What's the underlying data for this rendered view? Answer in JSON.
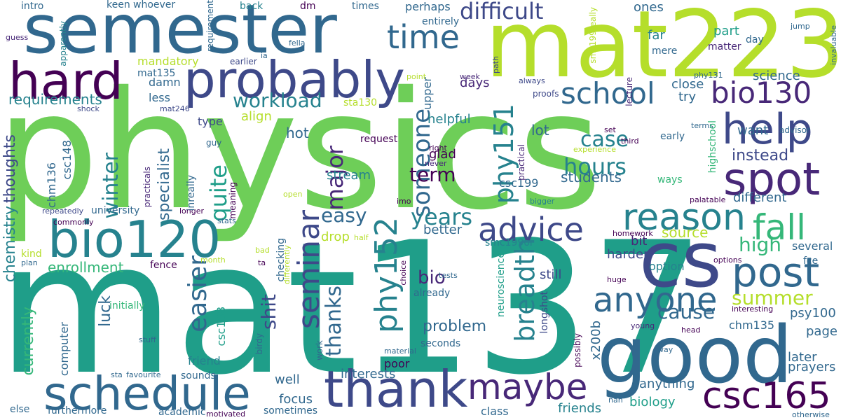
{
  "words": {
    "physics": "physics",
    "mat137": "mat137",
    "mat223": "mat223",
    "semester": "semester",
    "probably": "probably",
    "hard": "hard",
    "cs": "cs",
    "good": "good",
    "bio120": "bio120",
    "schedule": "schedule",
    "thank": "thank",
    "maybe": "maybe",
    "csc165": "csc165",
    "spot": "spot",
    "help": "help",
    "post": "post",
    "reason": "reason",
    "fall": "fall",
    "anyone": "anyone",
    "advice": "advice",
    "bio130": "bio130",
    "school": "school",
    "time": "time",
    "difficult": "difficult",
    "seminar": "seminar",
    "phy152": "phy152",
    "phy151": "phy151",
    "someone": "someone",
    "hours": "hours",
    "case": "case",
    "summer": "summer",
    "breadth": "breadth",
    "easier": "easier",
    "major": "major",
    "quite": "quite",
    "workload": "workload",
    "winter": "winter",
    "years": "years",
    "easy": "easy",
    "term": "term",
    "students": "students",
    "instead": "instead",
    "high": "high",
    "cause": "cause",
    "source": "source",
    "problem": "problem",
    "thanks": "thanks",
    "shit": "shit",
    "bio": "bio",
    "specialist": "specialist",
    "requirements": "requirements",
    "chemistry": "chemistry",
    "thoughts": "thoughts",
    "currently": "currently",
    "enrollment": "enrollment",
    "luck": "luck",
    "lot": "lot",
    "hot": "hot",
    "days": "days",
    "helpful": "helpful",
    "want": "want",
    "different": "different",
    "science": "science",
    "far": "far",
    "part": "part",
    "ones": "ones",
    "mere": "mere",
    "day": "day",
    "matter": "matter",
    "jump": "jump",
    "invaluable": "invaluable",
    "perhaps": "perhaps",
    "entirely": "entirely",
    "times": "times",
    "dm": "dm",
    "back": "back",
    "keen": "keen",
    "whoever": "whoever",
    "intro": "intro",
    "guess": "guess",
    "apparently": "apparently",
    "requirement": "requirement",
    "earlier": "earlier",
    "ia": "ia",
    "fella": "fella",
    "mandatory": "mandatory",
    "mat135": "mat135",
    "damn": "damn",
    "less": "less",
    "align": "align",
    "mat246": "mat246",
    "shock": "shock",
    "sta130": "sta130",
    "glad": "glad",
    "csc148": "csc148",
    "chm136": "chm136",
    "type": "type",
    "guy": "guy",
    "practicals": "practicals",
    "inreally": "inreally",
    "meaning": "meaning",
    "stream": "stream",
    "csc199": "csc199",
    "request": "request",
    "right": "right",
    "never": "never",
    "practical": "practical",
    "experience": "experience",
    "third": "third",
    "set": "set",
    "early": "early",
    "highschool": "highschool",
    "advisor": "advisor",
    "terms": "terms",
    "proofs": "proofs",
    "always": "always",
    "lecture": "lecture",
    "smc199really": "smc199really",
    "phy131": "phy131",
    "path": "path",
    "week": "week",
    "upper": "upper",
    "point": "point",
    "close": "close",
    "try": "try",
    "ways": "ways",
    "palatable": "palatable",
    "bigger": "bigger",
    "imo": "imo",
    "open": "open",
    "longer": "longer",
    "commonly": "commonly",
    "repeatedly": "repeatedly",
    "university": "university",
    "stats": "stats",
    "kind": "kind",
    "plan": "plan",
    "bad": "bad",
    "ta": "ta",
    "differently": "differently",
    "month": "month",
    "fence": "fence",
    "checking": "checking",
    "drop": "drop",
    "half": "half",
    "better": "better",
    "smc199or": "smc199or",
    "homework": "homework",
    "option": "option",
    "several": "several",
    "options": "options",
    "fce": "fce",
    "bit": "bit",
    "harder": "harder",
    "still": "still",
    "huge": "huge",
    "tests": "tests",
    "already": "already",
    "choice": "choice",
    "neuroscience": "neuroscience",
    "longshot": "longshot",
    "x200b": "x200b",
    "interesting": "interesting",
    "psy100": "psy100",
    "young": "young",
    "head": "head",
    "chm135": "chm135",
    "page": "page",
    "later": "later",
    "prayers": "prayers",
    "way": "way",
    "possibly": "possibly",
    "initially": "initially",
    "csc108": "csc108",
    "computer": "computer",
    "friend": "friend",
    "birdy": "birdy",
    "stuff": "stuff",
    "work": "work",
    "well": "well",
    "interests": "interests",
    "poor": "poor",
    "seconds": "seconds",
    "material": "material",
    "sta": "sta",
    "favourite": "favourite",
    "sounds": "sounds",
    "else": "else",
    "furthermore": "furthermore",
    "academic": "academic",
    "motivated": "motivated",
    "sometimes": "sometimes",
    "focus": "focus",
    "class": "class",
    "friends": "friends",
    "biology": "biology",
    "anything": "anything",
    "nah": "nah",
    "otherwise": "otherwise"
  },
  "palette": {
    "background": "#ffffff",
    "dark_purple": "#440154",
    "purple": "#482878",
    "indigo": "#3e4989",
    "blue": "#31688e",
    "teal": "#26828e",
    "sea_green": "#1f9e89",
    "green": "#35b779",
    "light_green": "#6ece58",
    "lime": "#b5de2b",
    "yellow": "#fde725"
  }
}
